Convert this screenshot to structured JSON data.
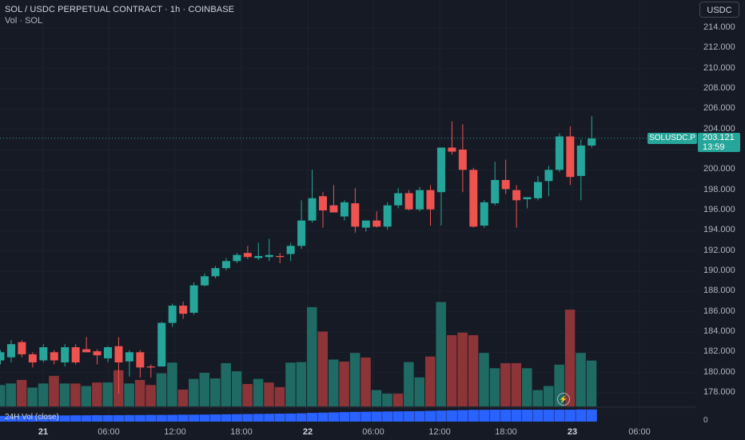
{
  "header": {
    "title": "SOL / USDC PERPETUAL CONTRACT · 1h · COINBASE",
    "volume_label": "Vol · SOL"
  },
  "currency_button": "USDC",
  "price_axis_ticks": [
    "214.000",
    "212.000",
    "210.000",
    "208.000",
    "206.000",
    "204.000",
    "202.000",
    "200.000",
    "198.000",
    "196.000",
    "194.000",
    "192.000",
    "190.000",
    "188.000",
    "186.000",
    "184.000",
    "182.000",
    "180.000",
    "178.000"
  ],
  "time_axis_ticks": [
    {
      "label": "21",
      "bold": true
    },
    {
      "label": "06:00",
      "bold": false
    },
    {
      "label": "12:00",
      "bold": false
    },
    {
      "label": "18:00",
      "bold": false
    },
    {
      "label": "22",
      "bold": true
    },
    {
      "label": "06:00",
      "bold": false
    },
    {
      "label": "12:00",
      "bold": false
    },
    {
      "label": "18:00",
      "bold": false
    },
    {
      "label": "23",
      "bold": true
    },
    {
      "label": "06:00",
      "bold": false
    }
  ],
  "last_price": {
    "symbol": "SOLUSDC.P",
    "price": "203.121",
    "countdown": "13:59"
  },
  "volume_indicator": {
    "label": "24H Vol (close)",
    "zero_label": "0"
  },
  "colors": {
    "up": "#26a69a",
    "down": "#ef5350",
    "vol_up": "#1f6b64",
    "vol_down": "#8c3438",
    "indicator": "#2962ff",
    "background": "#161a25"
  },
  "chart_data": {
    "type": "candlestick",
    "price_range": [
      177,
      215
    ],
    "candles": [
      {
        "o": 181.2,
        "h": 182.2,
        "l": 180.8,
        "c": 182.0
      },
      {
        "o": 181.5,
        "h": 183.2,
        "l": 181.0,
        "c": 182.8
      },
      {
        "o": 183.0,
        "h": 183.2,
        "l": 181.5,
        "c": 181.8
      },
      {
        "o": 181.8,
        "h": 182.0,
        "l": 180.5,
        "c": 181.0
      },
      {
        "o": 181.2,
        "h": 182.8,
        "l": 181.0,
        "c": 182.5
      },
      {
        "o": 182.0,
        "h": 182.2,
        "l": 180.8,
        "c": 181.2
      },
      {
        "o": 181.0,
        "h": 182.8,
        "l": 180.6,
        "c": 182.5
      },
      {
        "o": 182.5,
        "h": 182.8,
        "l": 180.8,
        "c": 181.0
      },
      {
        "o": 182.3,
        "h": 183.5,
        "l": 182.0,
        "c": 182.0
      },
      {
        "o": 182.1,
        "h": 182.3,
        "l": 180.8,
        "c": 181.7
      },
      {
        "o": 181.4,
        "h": 182.6,
        "l": 181.0,
        "c": 182.5
      },
      {
        "o": 182.6,
        "h": 183.5,
        "l": 177.9,
        "c": 181.0
      },
      {
        "o": 181.1,
        "h": 182.2,
        "l": 179.6,
        "c": 182.0
      },
      {
        "o": 182.0,
        "h": 182.2,
        "l": 179.5,
        "c": 180.5
      },
      {
        "o": 180.6,
        "h": 180.8,
        "l": 179.5,
        "c": 180.5
      },
      {
        "o": 180.6,
        "h": 185.0,
        "l": 180.6,
        "c": 184.9
      },
      {
        "o": 184.9,
        "h": 186.8,
        "l": 184.5,
        "c": 186.6
      },
      {
        "o": 186.6,
        "h": 187.0,
        "l": 185.3,
        "c": 185.8
      },
      {
        "o": 185.9,
        "h": 188.9,
        "l": 185.7,
        "c": 188.6
      },
      {
        "o": 188.6,
        "h": 189.8,
        "l": 188.5,
        "c": 189.5
      },
      {
        "o": 189.5,
        "h": 190.5,
        "l": 189.3,
        "c": 190.3
      },
      {
        "o": 190.3,
        "h": 191.3,
        "l": 190.1,
        "c": 191.0
      },
      {
        "o": 191.0,
        "h": 191.8,
        "l": 190.8,
        "c": 191.6
      },
      {
        "o": 191.8,
        "h": 192.5,
        "l": 191.2,
        "c": 191.4
      },
      {
        "o": 191.3,
        "h": 192.8,
        "l": 191.1,
        "c": 191.5
      },
      {
        "o": 191.4,
        "h": 193.2,
        "l": 191.0,
        "c": 191.6
      },
      {
        "o": 191.5,
        "h": 191.8,
        "l": 190.8,
        "c": 191.4
      },
      {
        "o": 191.7,
        "h": 192.8,
        "l": 191.0,
        "c": 192.5
      },
      {
        "o": 192.5,
        "h": 197.0,
        "l": 192.2,
        "c": 195.0
      },
      {
        "o": 195.0,
        "h": 200.0,
        "l": 194.8,
        "c": 197.2
      },
      {
        "o": 197.4,
        "h": 197.8,
        "l": 194.3,
        "c": 196.0
      },
      {
        "o": 196.5,
        "h": 198.5,
        "l": 196.0,
        "c": 195.8
      },
      {
        "o": 195.4,
        "h": 197.0,
        "l": 195.0,
        "c": 196.8
      },
      {
        "o": 196.7,
        "h": 198.2,
        "l": 193.8,
        "c": 194.4
      },
      {
        "o": 194.3,
        "h": 195.0,
        "l": 193.9,
        "c": 195.0
      },
      {
        "o": 195.0,
        "h": 195.9,
        "l": 194.3,
        "c": 194.4
      },
      {
        "o": 194.4,
        "h": 196.8,
        "l": 194.1,
        "c": 196.5
      },
      {
        "o": 196.5,
        "h": 198.2,
        "l": 196.2,
        "c": 197.7
      },
      {
        "o": 197.7,
        "h": 198.0,
        "l": 196.0,
        "c": 196.1
      },
      {
        "o": 196.1,
        "h": 198.3,
        "l": 195.9,
        "c": 198.0
      },
      {
        "o": 198.0,
        "h": 198.5,
        "l": 194.5,
        "c": 196.1
      },
      {
        "o": 197.8,
        "h": 202.2,
        "l": 194.5,
        "c": 202.2
      },
      {
        "o": 202.2,
        "h": 204.8,
        "l": 201.5,
        "c": 201.8
      },
      {
        "o": 202.0,
        "h": 204.5,
        "l": 197.8,
        "c": 200.0
      },
      {
        "o": 200.0,
        "h": 200.2,
        "l": 194.3,
        "c": 194.4
      },
      {
        "o": 194.5,
        "h": 197.0,
        "l": 194.3,
        "c": 196.8
      },
      {
        "o": 196.7,
        "h": 200.8,
        "l": 196.5,
        "c": 199.0
      },
      {
        "o": 199.0,
        "h": 201.0,
        "l": 197.6,
        "c": 198.1
      },
      {
        "o": 198.0,
        "h": 198.5,
        "l": 194.3,
        "c": 197.0
      },
      {
        "o": 197.1,
        "h": 197.3,
        "l": 196.2,
        "c": 197.3
      },
      {
        "o": 197.2,
        "h": 199.4,
        "l": 197.0,
        "c": 198.8
      },
      {
        "o": 198.9,
        "h": 200.4,
        "l": 197.4,
        "c": 200.0
      },
      {
        "o": 200.0,
        "h": 203.6,
        "l": 199.8,
        "c": 203.3
      },
      {
        "o": 203.3,
        "h": 204.3,
        "l": 198.5,
        "c": 199.3
      },
      {
        "o": 199.4,
        "h": 203.0,
        "l": 197.0,
        "c": 202.4
      },
      {
        "o": 202.4,
        "h": 205.3,
        "l": 202.2,
        "c": 203.1
      }
    ],
    "volume": [
      {
        "v": 0.42,
        "up": true
      },
      {
        "v": 0.45,
        "up": true
      },
      {
        "v": 0.52,
        "up": false
      },
      {
        "v": 0.37,
        "up": true
      },
      {
        "v": 0.45,
        "up": true
      },
      {
        "v": 0.6,
        "up": false
      },
      {
        "v": 0.45,
        "up": true
      },
      {
        "v": 0.45,
        "up": false
      },
      {
        "v": 0.4,
        "up": true
      },
      {
        "v": 0.47,
        "up": false
      },
      {
        "v": 0.47,
        "up": true
      },
      {
        "v": 0.71,
        "up": false
      },
      {
        "v": 0.45,
        "up": true
      },
      {
        "v": 0.52,
        "up": false
      },
      {
        "v": 0.42,
        "up": false
      },
      {
        "v": 0.65,
        "up": true
      },
      {
        "v": 0.86,
        "up": true
      },
      {
        "v": 0.33,
        "up": false
      },
      {
        "v": 0.54,
        "up": true
      },
      {
        "v": 0.66,
        "up": true
      },
      {
        "v": 0.55,
        "up": true
      },
      {
        "v": 0.85,
        "up": true
      },
      {
        "v": 0.69,
        "up": true
      },
      {
        "v": 0.44,
        "up": false
      },
      {
        "v": 0.54,
        "up": true
      },
      {
        "v": 0.47,
        "up": false
      },
      {
        "v": 0.38,
        "up": false
      },
      {
        "v": 0.86,
        "up": true
      },
      {
        "v": 0.87,
        "up": true
      },
      {
        "v": 1.95,
        "up": true
      },
      {
        "v": 1.47,
        "up": false
      },
      {
        "v": 0.92,
        "up": true
      },
      {
        "v": 0.88,
        "up": false
      },
      {
        "v": 1.05,
        "up": true
      },
      {
        "v": 0.96,
        "up": false
      },
      {
        "v": 0.32,
        "up": true
      },
      {
        "v": 0.25,
        "up": true
      },
      {
        "v": 0.25,
        "up": false
      },
      {
        "v": 0.87,
        "up": true
      },
      {
        "v": 0.57,
        "up": true
      },
      {
        "v": 0.98,
        "up": false
      },
      {
        "v": 2.05,
        "up": true
      },
      {
        "v": 1.4,
        "up": false
      },
      {
        "v": 1.45,
        "up": false
      },
      {
        "v": 1.4,
        "up": false
      },
      {
        "v": 1.05,
        "up": true
      },
      {
        "v": 0.75,
        "up": true
      },
      {
        "v": 0.85,
        "up": false
      },
      {
        "v": 0.85,
        "up": false
      },
      {
        "v": 0.75,
        "up": true
      },
      {
        "v": 0.32,
        "up": true
      },
      {
        "v": 0.4,
        "up": true
      },
      {
        "v": 0.82,
        "up": true
      },
      {
        "v": 1.9,
        "up": false
      },
      {
        "v": 1.05,
        "up": true
      },
      {
        "v": 0.9,
        "up": true
      }
    ],
    "volume_range": [
      0,
      2.2
    ],
    "volume_24h": [
      0.45,
      0.45,
      0.46,
      0.47,
      0.47,
      0.48,
      0.48,
      0.49,
      0.49,
      0.5,
      0.5,
      0.5,
      0.51,
      0.51,
      0.52,
      0.52,
      0.53,
      0.54,
      0.54,
      0.55,
      0.56,
      0.57,
      0.58,
      0.59,
      0.6,
      0.61,
      0.62,
      0.63,
      0.65,
      0.68,
      0.7,
      0.72,
      0.74,
      0.76,
      0.77,
      0.78,
      0.79,
      0.8,
      0.81,
      0.82,
      0.84,
      0.86,
      0.88,
      0.9,
      0.92,
      0.92,
      0.93,
      0.93,
      0.93,
      0.93,
      0.93,
      0.93,
      0.93,
      0.93,
      0.95,
      0.95
    ],
    "volume_24h_range": [
      0,
      1
    ]
  }
}
